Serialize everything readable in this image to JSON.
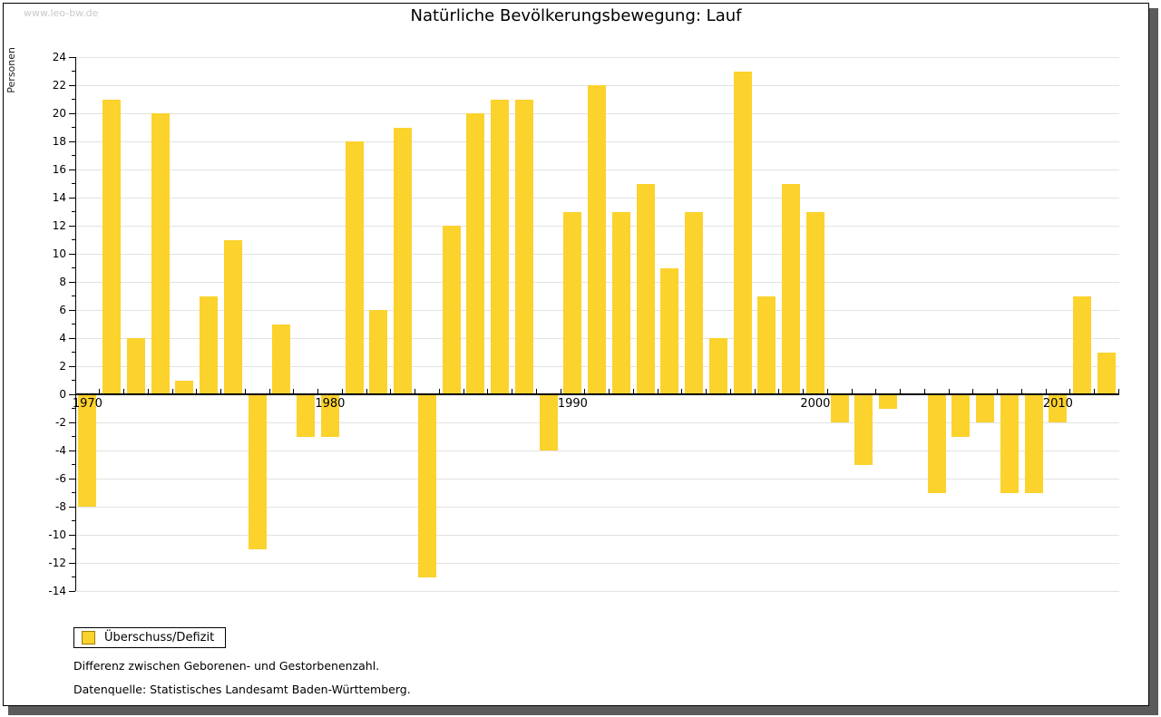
{
  "page": {
    "watermark": "www.leo-bw.de",
    "footnote1": "Differenz zwischen Geborenen- und Gestorbenenzahl.",
    "footnote2": "Datenquelle: Statistisches Landesamt Baden-Württemberg."
  },
  "chart_data": {
    "type": "bar",
    "title": "Natürliche Bevölkerungsbewegung: Lauf",
    "ylabel": "Personen",
    "series_name": "Überschuss/Defizit",
    "legend_position": "bottom-left",
    "grid": true,
    "ylim": [
      -14,
      24
    ],
    "ytick_step": 2,
    "xtick_labels": [
      "1970",
      "1980",
      "1990",
      "2000",
      "2010"
    ],
    "years": [
      1970,
      1971,
      1972,
      1973,
      1974,
      1975,
      1976,
      1977,
      1978,
      1979,
      1980,
      1981,
      1982,
      1983,
      1984,
      1985,
      1986,
      1987,
      1988,
      1989,
      1990,
      1991,
      1992,
      1993,
      1994,
      1995,
      1996,
      1997,
      1998,
      1999,
      2000,
      2001,
      2002,
      2003,
      2004,
      2005,
      2006,
      2007,
      2008,
      2009,
      2010,
      2011,
      2012
    ],
    "values": [
      -8,
      21,
      4,
      20,
      1,
      7,
      11,
      -11,
      5,
      -3,
      -3,
      18,
      6,
      19,
      -13,
      12,
      20,
      21,
      21,
      -4,
      13,
      22,
      13,
      15,
      9,
      13,
      4,
      23,
      7,
      15,
      13,
      -2,
      -5,
      -1,
      0,
      -7,
      -3,
      -2,
      -7,
      -7,
      -2,
      7,
      3
    ],
    "bar_color": "#fcd22c",
    "grid_color": "#e2e2e2"
  }
}
